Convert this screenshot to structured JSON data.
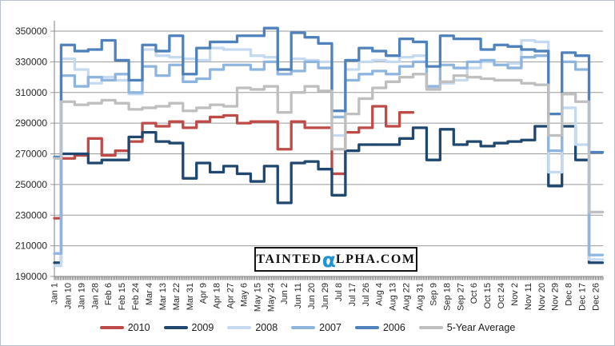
{
  "watermark": {
    "pre": "TAINTED",
    "alpha": "α",
    "post": "LPHA.COM"
  },
  "chart_data": {
    "type": "line",
    "title": "",
    "xlabel": "",
    "ylabel": "",
    "ylim": [
      190000,
      350000
    ],
    "ytick_step": 20000,
    "grid": true,
    "legend_position": "bottom",
    "x_labels": [
      "Jan 1",
      "Jan 10",
      "Jan 19",
      "Jan 28",
      "Feb 6",
      "Feb 15",
      "Feb 24",
      "Mar 4",
      "Mar 13",
      "Mar 22",
      "Mar 31",
      "Apr 9",
      "Apr 18",
      "Apr 27",
      "May 6",
      "May 15",
      "May 24",
      "Jun 2",
      "Jun 11",
      "Jun 20",
      "Jun 29",
      "Jul 8",
      "Jul 17",
      "Jul 26",
      "Aug 4",
      "Aug 13",
      "Aug 22",
      "Aug 31",
      "Sep 9",
      "Sep 18",
      "Sep 27",
      "Oct 6",
      "Oct 15",
      "Oct 24",
      "Nov 2",
      "Nov 11",
      "Nov 20",
      "Nov 29",
      "Dec 8",
      "Dec 17",
      "Dec 26"
    ],
    "series": [
      {
        "name": "2010",
        "color": "#BE4B48",
        "values": [
          228000,
          267000,
          269000,
          280000,
          269000,
          272000,
          278000,
          290000,
          288000,
          291000,
          287000,
          291000,
          294000,
          295000,
          290000,
          291000,
          291000,
          273000,
          291000,
          287000,
          287000,
          257000,
          284000,
          287000,
          301000,
          288000,
          297000,
          null,
          null,
          null,
          null,
          null,
          null,
          null,
          null,
          null,
          null,
          null,
          null,
          null,
          null
        ]
      },
      {
        "name": "2009",
        "color": "#1F4770",
        "values": [
          199000,
          270000,
          270000,
          264000,
          266000,
          266000,
          281000,
          284000,
          278000,
          277000,
          254000,
          264000,
          258000,
          262000,
          257000,
          252000,
          262000,
          238000,
          264000,
          265000,
          260000,
          243000,
          272000,
          276000,
          276000,
          276000,
          280000,
          287000,
          266000,
          286000,
          276000,
          278000,
          275000,
          277000,
          278000,
          279000,
          288000,
          249000,
          288000,
          266000,
          199000
        ]
      },
      {
        "name": "2008",
        "color": "#C5DAF1",
        "values": [
          197000,
          332000,
          325000,
          316000,
          320000,
          318000,
          309000,
          338000,
          334000,
          333000,
          332000,
          331000,
          339000,
          338000,
          338000,
          334000,
          333000,
          325000,
          332000,
          331000,
          330000,
          282000,
          325000,
          330000,
          331000,
          330000,
          333000,
          334000,
          313000,
          316000,
          318000,
          326000,
          330000,
          328000,
          329000,
          344000,
          343000,
          258000,
          300000,
          276000,
          201000
        ]
      },
      {
        "name": "2007",
        "color": "#8EB4E0",
        "values": [
          205000,
          321000,
          314000,
          320000,
          318000,
          322000,
          310000,
          327000,
          321000,
          328000,
          317000,
          319000,
          325000,
          328000,
          328000,
          325000,
          330000,
          322000,
          324000,
          330000,
          326000,
          294000,
          318000,
          322000,
          324000,
          322000,
          327000,
          330000,
          314000,
          328000,
          326000,
          330000,
          331000,
          328000,
          326000,
          333000,
          334000,
          272000,
          330000,
          325000,
          204000
        ]
      },
      {
        "name": "2006",
        "color": "#4F81BD",
        "values": [
          268000,
          341000,
          337000,
          338000,
          344000,
          331000,
          318000,
          341000,
          337000,
          347000,
          322000,
          339000,
          343000,
          343000,
          347000,
          347000,
          352000,
          325000,
          349000,
          346000,
          342000,
          298000,
          331000,
          339000,
          337000,
          334000,
          345000,
          343000,
          327000,
          347000,
          345000,
          345000,
          338000,
          341000,
          340000,
          338000,
          337000,
          296000,
          336000,
          334000,
          271000
        ]
      },
      {
        "name": "5-Year Average",
        "color": "#BFBFBF",
        "values": [
          267000,
          304000,
          302000,
          303000,
          305000,
          303000,
          299000,
          300000,
          301000,
          303000,
          298000,
          300000,
          302000,
          301000,
          313000,
          312000,
          314000,
          297000,
          310000,
          314000,
          311000,
          273000,
          296000,
          306000,
          313000,
          317000,
          320000,
          322000,
          312000,
          317000,
          321000,
          320000,
          319000,
          318000,
          318000,
          316000,
          315000,
          282000,
          309000,
          304000,
          232000
        ]
      }
    ]
  }
}
